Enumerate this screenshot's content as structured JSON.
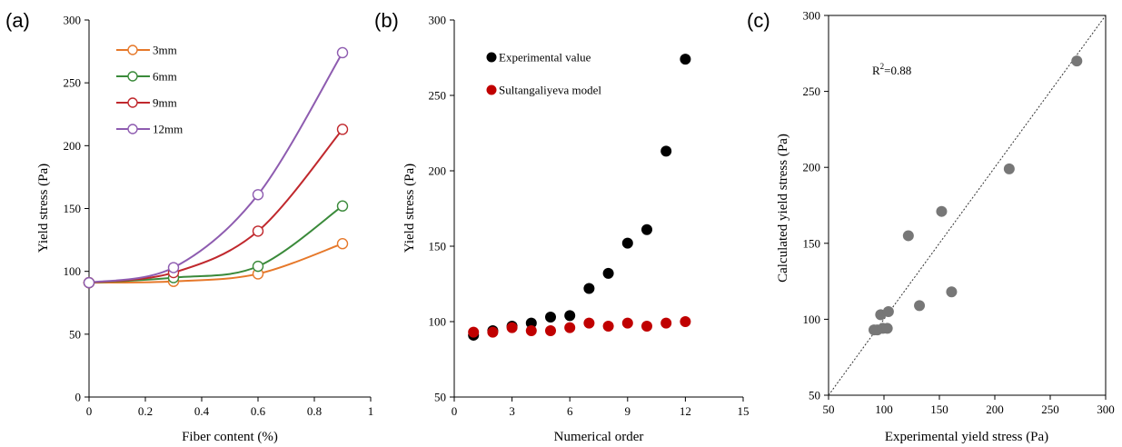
{
  "chart_data": [
    {
      "panel_label": "(a)",
      "type": "line",
      "xlabel": "Fiber content (%)",
      "ylabel": "Yield stress (Pa)",
      "xlim": [
        0,
        1
      ],
      "ylim": [
        0,
        300
      ],
      "xticks": [
        "0",
        "0.2",
        "0.4",
        "0.6",
        "0.8",
        "1"
      ],
      "yticks": [
        "0",
        "50",
        "100",
        "150",
        "200",
        "250",
        "300"
      ],
      "x": [
        0,
        0.3,
        0.6,
        0.9
      ],
      "legend_position": "top-left",
      "grid": false,
      "series": [
        {
          "name": "3mm",
          "color": "#E6782A",
          "values": [
            91,
            92,
            98,
            122
          ]
        },
        {
          "name": "6mm",
          "color": "#3A8A3A",
          "values": [
            91,
            95,
            104,
            152
          ]
        },
        {
          "name": "9mm",
          "color": "#C0282D",
          "values": [
            91,
            99,
            132,
            213
          ]
        },
        {
          "name": "12mm",
          "color": "#8E5CB0",
          "values": [
            91,
            103,
            161,
            274
          ]
        }
      ]
    },
    {
      "panel_label": "(b)",
      "type": "scatter",
      "xlabel": "Numerical order",
      "ylabel": "Yield stress (Pa)",
      "xlim": [
        0,
        15
      ],
      "ylim": [
        50,
        300
      ],
      "xticks": [
        "0",
        "3",
        "6",
        "9",
        "12",
        "15"
      ],
      "yticks": [
        "50",
        "100",
        "150",
        "200",
        "250",
        "300"
      ],
      "legend_position": "top-left",
      "grid": false,
      "series": [
        {
          "name": "Experimental value",
          "color": "#000000",
          "x": [
            1,
            2,
            3,
            4,
            5,
            6,
            7,
            8,
            9,
            10,
            11,
            12
          ],
          "values": [
            91,
            94,
            97,
            99,
            103,
            104,
            122,
            132,
            152,
            161,
            213,
            274
          ]
        },
        {
          "name": "Sultangaliyeva model",
          "color": "#C00000",
          "x": [
            1,
            2,
            3,
            4,
            5,
            6,
            7,
            8,
            9,
            10,
            11,
            12
          ],
          "values": [
            93,
            93,
            96,
            94,
            94,
            96,
            99,
            97,
            99,
            97,
            99,
            100
          ]
        }
      ]
    },
    {
      "panel_label": "(c)",
      "type": "scatter",
      "xlabel": "Experimental yield stress (Pa)",
      "ylabel": "Calculated yield stress (Pa)",
      "xlim": [
        50,
        300
      ],
      "ylim": [
        50,
        300
      ],
      "xticks": [
        "50",
        "100",
        "150",
        "200",
        "250",
        "300"
      ],
      "yticks": [
        "50",
        "100",
        "150",
        "200",
        "250",
        "300"
      ],
      "annotation_base": "R",
      "annotation_sup": "2",
      "annotation_rest": "=0.88",
      "diagonal": true,
      "grid": false,
      "series": [
        {
          "color": "#777777",
          "x": [
            91,
            94,
            97,
            99,
            103,
            104,
            122,
            132,
            152,
            161,
            213,
            274
          ],
          "values": [
            93,
            93,
            103,
            94,
            94,
            105,
            155,
            109,
            171,
            118,
            199,
            270
          ]
        }
      ]
    }
  ]
}
